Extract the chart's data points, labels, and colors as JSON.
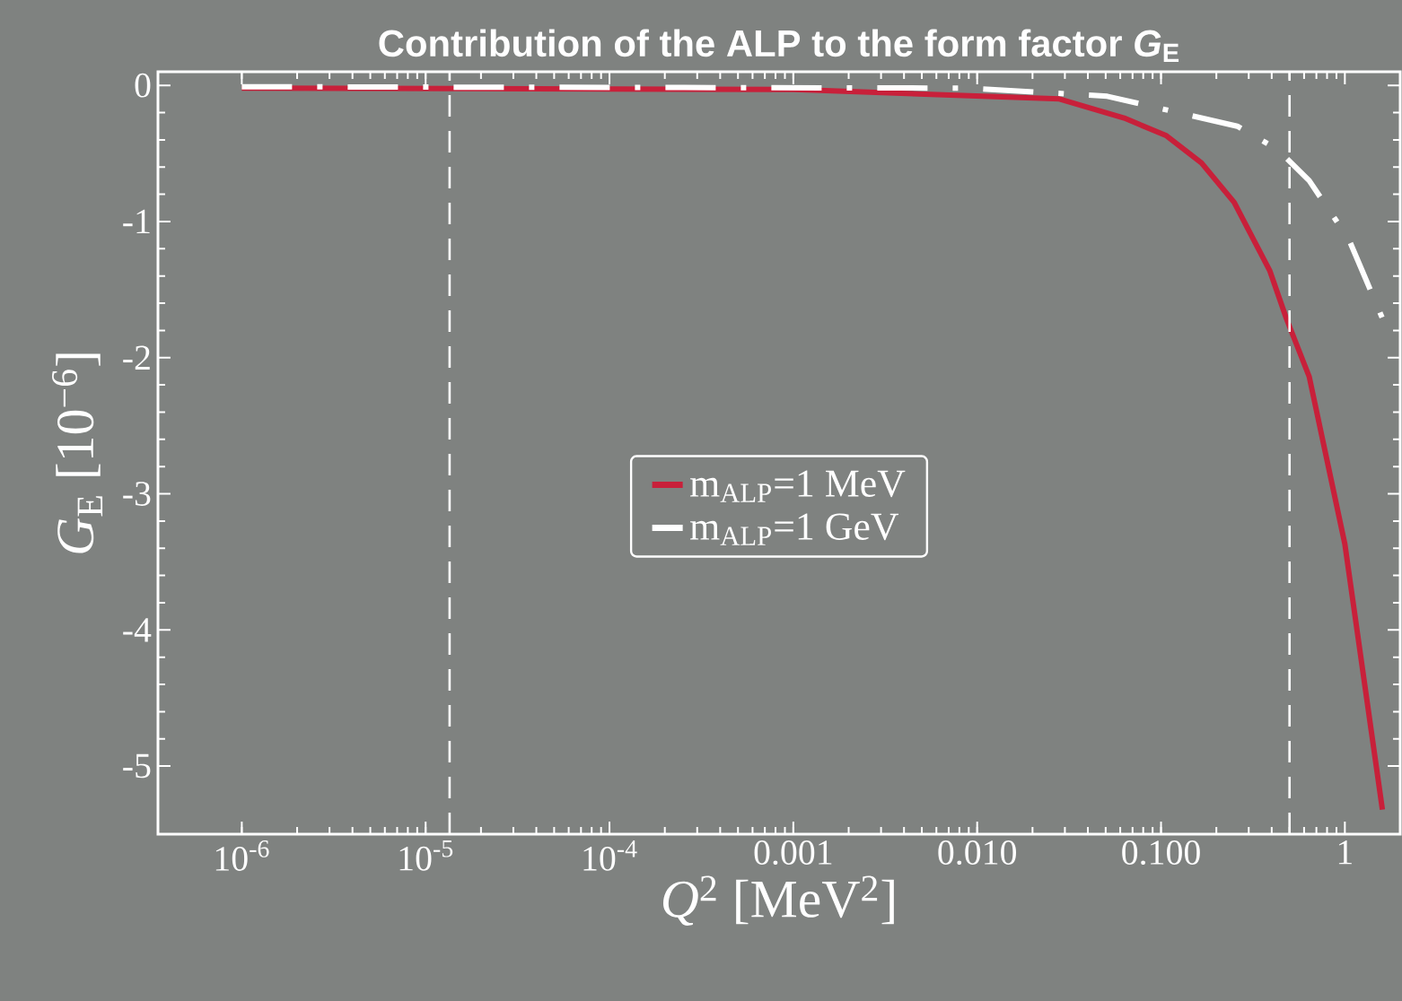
{
  "chart_data": {
    "type": "line",
    "title": "Contribution of the ALP to the form factor *G*$_{E}$",
    "xlabel": "*Q*$^{2}$ [MeV$^{2}$]",
    "ylabel": "*G*$_{E}$ [10$^{−6}$]",
    "log": "x",
    "grid": false,
    "legend": "center",
    "marker": "none",
    "xlim": [
      3.5e-07,
      2
    ],
    "ylim": [
      -5.5,
      0.1
    ],
    "xticks": [
      {
        "value": 1e-06,
        "label": "10$^{-6}$"
      },
      {
        "value": 1e-05,
        "label": "10$^{-5}$"
      },
      {
        "value": 0.0001,
        "label": "10$^{-4}$"
      },
      {
        "value": 0.001,
        "label": "0.001"
      },
      {
        "value": 0.01,
        "label": "0.010"
      },
      {
        "value": 0.1,
        "label": "0.100"
      },
      {
        "value": 1,
        "label": "1"
      }
    ],
    "yticks": [
      0,
      -1,
      -2,
      -3,
      -4,
      -5
    ],
    "ref_lines": [
      {
        "axis": "x",
        "value": 1.35e-05,
        "color": "#ffffff",
        "line_style": "dashed"
      },
      {
        "axis": "x",
        "value": 0.5,
        "color": "#ffffff",
        "line_style": "dashed"
      }
    ],
    "series": [
      {
        "name": "m$_{ALP}$=1 MeV",
        "color": "#c8203a",
        "line_style": "solid",
        "x": [
          1e-06,
          0.001,
          0.028,
          0.063,
          0.107,
          0.166,
          0.25,
          0.39,
          0.48,
          0.64,
          1.0,
          1.6
        ],
        "values": [
          -0.02,
          -0.03,
          -0.1,
          -0.24,
          -0.37,
          -0.57,
          -0.86,
          -1.36,
          -1.71,
          -2.14,
          -3.37,
          -5.32
        ]
      },
      {
        "name": "m$_{ALP}$=1 GeV",
        "color": "#ffffff",
        "line_style": "dashdot",
        "x": [
          1e-06,
          0.009,
          0.051,
          0.26,
          0.43,
          0.64,
          1.05,
          1.6
        ],
        "values": [
          -0.01,
          -0.02,
          -0.08,
          -0.3,
          -0.47,
          -0.7,
          -1.13,
          -1.71
        ]
      }
    ]
  }
}
